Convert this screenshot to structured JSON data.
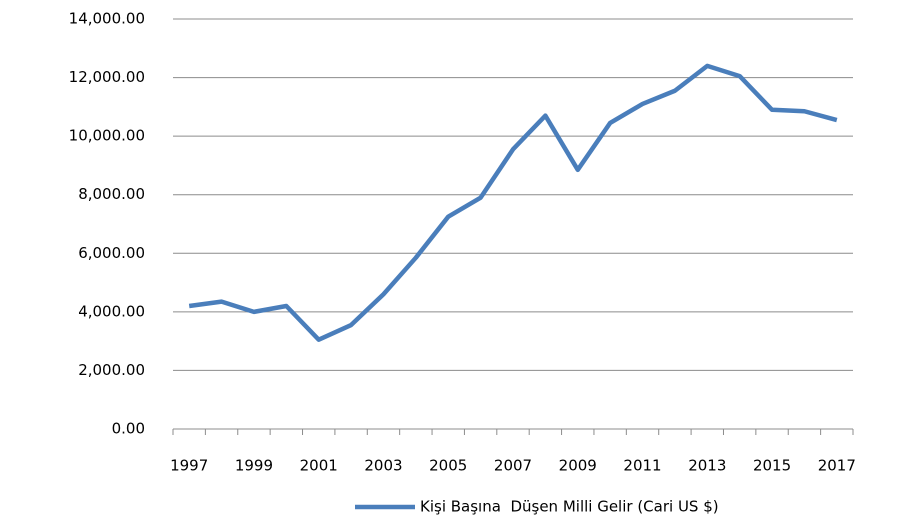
{
  "chart_data": {
    "type": "line",
    "categories": [
      "1997",
      null,
      "1999",
      null,
      "2001",
      null,
      "2003",
      null,
      "2005",
      null,
      "2007",
      null,
      "2009",
      null,
      "2011",
      null,
      "2013",
      null,
      "2015",
      null,
      "2017"
    ],
    "series": [
      {
        "name": "Kişi Başına  Düşen Milli Gelir (Cari US $)",
        "color": "#4a7ebb",
        "values": [
          4200,
          4350,
          4000,
          4200,
          3050,
          3550,
          4600,
          5850,
          7250,
          7900,
          9550,
          10700,
          8850,
          10450,
          11100,
          11550,
          12400,
          12050,
          10900,
          10850,
          10550
        ]
      }
    ],
    "ylim": [
      0,
      14000
    ],
    "yticks": [
      {
        "value": 0,
        "label": "0.00"
      },
      {
        "value": 2000,
        "label": "2,000.00"
      },
      {
        "value": 4000,
        "label": "4,000.00"
      },
      {
        "value": 6000,
        "label": "6,000.00"
      },
      {
        "value": 8000,
        "label": "8,000.00"
      },
      {
        "value": 10000,
        "label": "10,000.00"
      },
      {
        "value": 12000,
        "label": "12,000.00"
      },
      {
        "value": 14000,
        "label": "14,000.00"
      }
    ],
    "grid": true,
    "legend": "bottom"
  }
}
